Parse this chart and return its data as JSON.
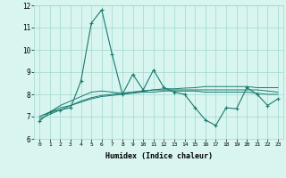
{
  "xlabel": "Humidex (Indice chaleur)",
  "x_values": [
    0,
    1,
    2,
    3,
    4,
    5,
    6,
    7,
    8,
    9,
    10,
    11,
    12,
    13,
    14,
    15,
    16,
    17,
    18,
    19,
    20,
    21,
    22,
    23
  ],
  "series1": [
    6.8,
    7.2,
    7.3,
    7.4,
    8.6,
    11.2,
    11.8,
    9.8,
    8.0,
    8.9,
    8.2,
    9.1,
    8.3,
    8.1,
    8.0,
    7.4,
    6.85,
    6.6,
    7.4,
    7.35,
    8.3,
    8.0,
    7.5,
    7.8
  ],
  "series2": [
    7.0,
    7.2,
    7.5,
    7.7,
    7.9,
    8.1,
    8.15,
    8.1,
    8.05,
    8.1,
    8.15,
    8.2,
    8.2,
    8.2,
    8.2,
    8.2,
    8.2,
    8.2,
    8.2,
    8.2,
    8.2,
    8.2,
    8.15,
    8.1
  ],
  "series3": [
    7.0,
    7.2,
    7.4,
    7.5,
    7.65,
    7.8,
    7.9,
    7.95,
    8.0,
    8.05,
    8.1,
    8.1,
    8.15,
    8.15,
    8.15,
    8.15,
    8.1,
    8.1,
    8.1,
    8.1,
    8.1,
    8.05,
    8.0,
    8.0
  ],
  "series4": [
    6.9,
    7.1,
    7.3,
    7.5,
    7.7,
    7.85,
    7.95,
    8.0,
    8.05,
    8.1,
    8.15,
    8.2,
    8.25,
    8.25,
    8.28,
    8.3,
    8.35,
    8.35,
    8.35,
    8.35,
    8.35,
    8.3,
    8.3,
    8.3
  ],
  "color": "#1a7a6e",
  "bg_color": "#d8f5f0",
  "grid_color": "#a0d8cf",
  "ylim": [
    6,
    12
  ],
  "yticks": [
    6,
    7,
    8,
    9,
    10,
    11,
    12
  ]
}
